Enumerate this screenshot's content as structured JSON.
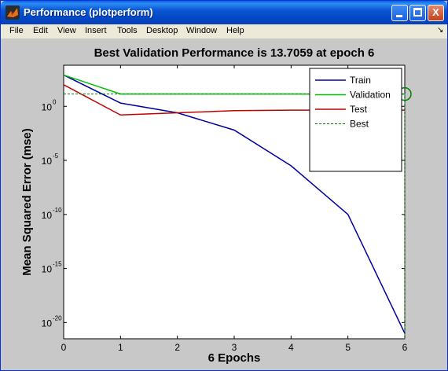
{
  "window": {
    "title": "Performance (plotperform)",
    "minimize_label": "_",
    "close_label": "X"
  },
  "menu": [
    "File",
    "Edit",
    "View",
    "Insert",
    "Tools",
    "Desktop",
    "Window",
    "Help"
  ],
  "menu_arrow": "↘",
  "colors": {
    "train": "#0000A0",
    "validation": "#00C000",
    "test": "#C00000",
    "best": "#008000",
    "plot_bg": "#FFFFFF",
    "figure_bg": "#C8C8C8"
  },
  "chart_data": {
    "type": "line",
    "title": "Best Validation Performance is 13.7059 at epoch 6",
    "xlabel": "6 Epochs",
    "ylabel": "Mean Squared Error  (mse)",
    "xlim": [
      0,
      6
    ],
    "ylim_log10": [
      -21.5,
      3.8
    ],
    "yscale": "log",
    "x_ticks": [
      "0",
      "1",
      "2",
      "3",
      "4",
      "5",
      "6"
    ],
    "y_ticks": [
      {
        "base": "10",
        "exp": "0",
        "log10": 0
      },
      {
        "base": "10",
        "exp": "-5",
        "log10": -5
      },
      {
        "base": "10",
        "exp": "-10",
        "log10": -10
      },
      {
        "base": "10",
        "exp": "-15",
        "log10": -15
      },
      {
        "base": "10",
        "exp": "-20",
        "log10": -20
      }
    ],
    "x": [
      0,
      1,
      2,
      3,
      4,
      5,
      6
    ],
    "series": [
      {
        "name": "Train",
        "log10_values": [
          2.9,
          0.3,
          -0.6,
          -2.2,
          -5.5,
          -10.0,
          -21.0
        ]
      },
      {
        "name": "Validation",
        "log10_values": [
          2.9,
          1.137,
          1.137,
          1.137,
          1.137,
          1.137,
          1.137
        ]
      },
      {
        "name": "Test",
        "log10_values": [
          2.0,
          -0.8,
          -0.6,
          -0.4,
          -0.35,
          -0.35,
          -0.35
        ]
      }
    ],
    "best": {
      "name": "Best",
      "epoch": 6,
      "value": 13.7059
    },
    "legend": {
      "position": "top-right",
      "entries": [
        "Train",
        "Validation",
        "Test",
        "Best"
      ]
    },
    "grid": false
  }
}
